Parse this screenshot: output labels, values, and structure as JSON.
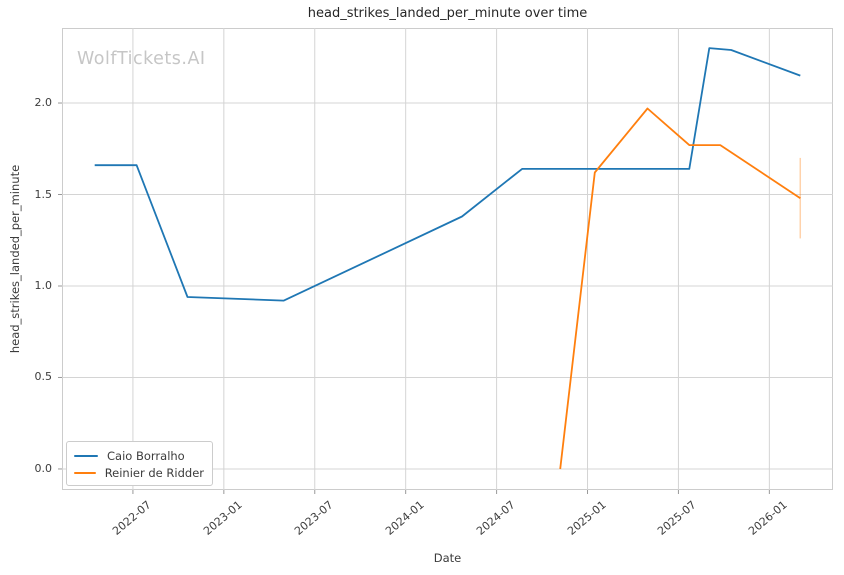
{
  "figure": {
    "title": "head_strikes_landed_per_minute over time",
    "watermark": "WolfTickets.AI",
    "xlabel": "Date",
    "ylabel": "head_strikes_landed_per_minute"
  },
  "chart_data": {
    "type": "line",
    "title": "head_strikes_landed_per_minute over time",
    "xlabel": "Date",
    "ylabel": "head_strikes_landed_per_minute",
    "grid": true,
    "legend_position": "lower left",
    "x_axis": {
      "ticks": [
        "2022-07",
        "2023-01",
        "2023-07",
        "2024-01",
        "2024-07",
        "2025-01",
        "2025-07",
        "2026-01"
      ],
      "tick_values": [
        2022.5,
        2023.0,
        2023.5,
        2024.0,
        2024.5,
        2025.0,
        2025.5,
        2026.0
      ],
      "range": [
        2022.11,
        2026.35
      ]
    },
    "y_axis": {
      "ticks": [
        "0.0",
        "0.5",
        "1.0",
        "1.5",
        "2.0"
      ],
      "tick_values": [
        0.0,
        0.5,
        1.0,
        1.5,
        2.0
      ],
      "range": [
        -0.115,
        2.41
      ]
    },
    "series": [
      {
        "name": "Caio Borralho",
        "color": "#1f77b4",
        "points": [
          {
            "date": "2022-04",
            "x": 2022.29,
            "y": 1.66
          },
          {
            "date": "2022-07",
            "x": 2022.52,
            "y": 1.66
          },
          {
            "date": "2022-10",
            "x": 2022.8,
            "y": 0.94
          },
          {
            "date": "2023-05",
            "x": 2023.33,
            "y": 0.92
          },
          {
            "date": "2024-04",
            "x": 2024.31,
            "y": 1.38
          },
          {
            "date": "2024-08",
            "x": 2024.64,
            "y": 1.64
          },
          {
            "date": "2025-07",
            "x": 2025.56,
            "y": 1.64
          },
          {
            "date": "2025-09",
            "x": 2025.67,
            "y": 2.3
          },
          {
            "date": "2025-10",
            "x": 2025.79,
            "y": 2.29
          },
          {
            "date": "2026-03",
            "x": 2026.17,
            "y": 2.15
          }
        ]
      },
      {
        "name": "Reinier de Ridder",
        "color": "#ff7f0e",
        "points": [
          {
            "date": "2024-11",
            "x": 2024.85,
            "y": 0.0
          },
          {
            "date": "2025-01",
            "x": 2025.04,
            "y": 1.62
          },
          {
            "date": "2025-05",
            "x": 2025.33,
            "y": 1.97
          },
          {
            "date": "2025-07",
            "x": 2025.56,
            "y": 1.77
          },
          {
            "date": "2025-09",
            "x": 2025.73,
            "y": 1.77
          },
          {
            "date": "2026-03",
            "x": 2026.17,
            "y": 1.48
          }
        ],
        "error_bar": {
          "x": 2026.17,
          "y_low": 1.26,
          "y_high": 1.7
        }
      }
    ],
    "style": {
      "grid_color": "#d4d4d4",
      "spine_color": "#cccccc",
      "tick_color": "#999999",
      "line_width": 1.8
    }
  }
}
